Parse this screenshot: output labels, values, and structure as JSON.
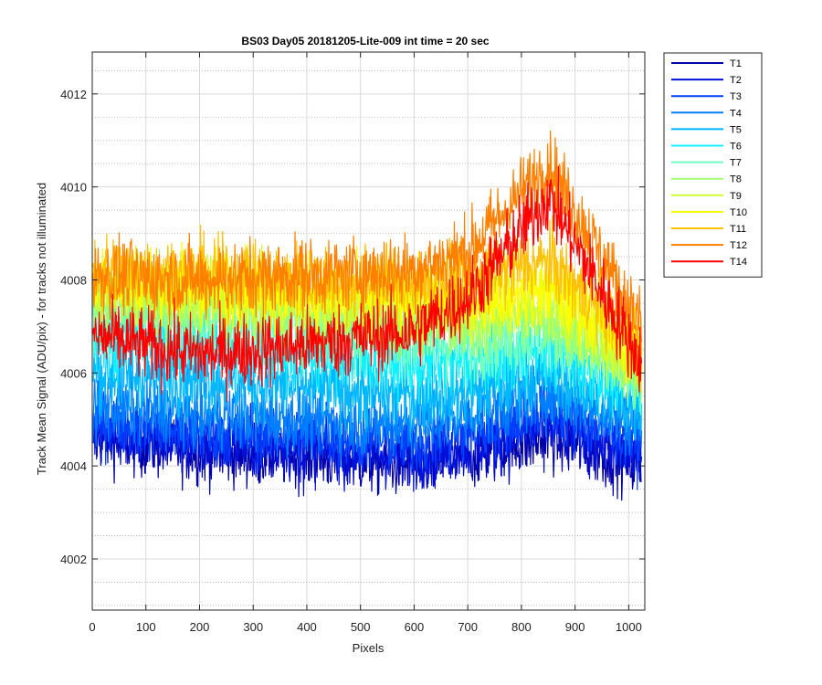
{
  "chart_data": {
    "type": "line",
    "title": "BS03 Day05 20181205-Lite-009 int time = 20 sec",
    "xlabel": "Pixels",
    "ylabel": "Track Mean Signal (ADU/pix) - for tracks not illuminated",
    "xlim": [
      0,
      1030
    ],
    "ylim": [
      4000.9,
      4012.9
    ],
    "xticks": [
      0,
      100,
      200,
      300,
      400,
      500,
      600,
      700,
      800,
      900,
      1000
    ],
    "yticks": [
      4002,
      4004,
      4006,
      4008,
      4010,
      4012
    ],
    "grid": true,
    "legend_position": "outside-right",
    "series": [
      {
        "name": "T1",
        "color": "#0000aa",
        "trend": [
          [
            0,
            4004.6
          ],
          [
            200,
            4004.3
          ],
          [
            400,
            4004.2
          ],
          [
            600,
            4004.0
          ],
          [
            700,
            4004.2
          ],
          [
            850,
            4004.6
          ],
          [
            1024,
            4004.0
          ]
        ],
        "noise": 0.7
      },
      {
        "name": "T2",
        "color": "#0010dd",
        "trend": [
          [
            0,
            4004.8
          ],
          [
            200,
            4004.5
          ],
          [
            400,
            4004.4
          ],
          [
            600,
            4004.2
          ],
          [
            700,
            4004.4
          ],
          [
            850,
            4004.9
          ],
          [
            1024,
            4004.2
          ]
        ],
        "noise": 0.7
      },
      {
        "name": "T3",
        "color": "#0040ff",
        "trend": [
          [
            0,
            4005.0
          ],
          [
            200,
            4004.7
          ],
          [
            400,
            4004.7
          ],
          [
            600,
            4004.5
          ],
          [
            700,
            4004.7
          ],
          [
            850,
            4005.2
          ],
          [
            1024,
            4004.5
          ]
        ],
        "noise": 0.7
      },
      {
        "name": "T4",
        "color": "#0080ff",
        "trend": [
          [
            0,
            4005.3
          ],
          [
            200,
            4005.1
          ],
          [
            400,
            4005.0
          ],
          [
            600,
            4004.9
          ],
          [
            700,
            4005.1
          ],
          [
            850,
            4005.6
          ],
          [
            1024,
            4004.9
          ]
        ],
        "noise": 0.75
      },
      {
        "name": "T5",
        "color": "#00b8ff",
        "trend": [
          [
            0,
            4006.0
          ],
          [
            200,
            4005.9
          ],
          [
            400,
            4005.7
          ],
          [
            600,
            4005.5
          ],
          [
            700,
            4005.6
          ],
          [
            850,
            4006.0
          ],
          [
            1024,
            4005.2
          ]
        ],
        "noise": 0.8
      },
      {
        "name": "T6",
        "color": "#10f0ff",
        "trend": [
          [
            0,
            4006.8
          ],
          [
            200,
            4006.7
          ],
          [
            400,
            4006.4
          ],
          [
            600,
            4006.2
          ],
          [
            700,
            4006.2
          ],
          [
            850,
            4006.5
          ],
          [
            1024,
            4005.6
          ]
        ],
        "noise": 0.8
      },
      {
        "name": "T7",
        "color": "#70ffc0",
        "trend": [
          [
            0,
            4007.3
          ],
          [
            200,
            4007.2
          ],
          [
            400,
            4006.9
          ],
          [
            600,
            4006.7
          ],
          [
            700,
            4006.6
          ],
          [
            850,
            4006.9
          ],
          [
            1024,
            4005.8
          ]
        ],
        "noise": 0.8
      },
      {
        "name": "T8",
        "color": "#a0ff70",
        "trend": [
          [
            0,
            4007.6
          ],
          [
            200,
            4007.5
          ],
          [
            400,
            4007.3
          ],
          [
            600,
            4007.1
          ],
          [
            700,
            4007.0
          ],
          [
            850,
            4007.2
          ],
          [
            1024,
            4006.0
          ]
        ],
        "noise": 0.8
      },
      {
        "name": "T9",
        "color": "#d0ff30",
        "trend": [
          [
            0,
            4007.8
          ],
          [
            200,
            4007.7
          ],
          [
            400,
            4007.5
          ],
          [
            600,
            4007.4
          ],
          [
            700,
            4007.3
          ],
          [
            850,
            4007.5
          ],
          [
            1024,
            4006.2
          ]
        ],
        "noise": 0.8
      },
      {
        "name": "T10",
        "color": "#ffff00",
        "trend": [
          [
            0,
            4008.0
          ],
          [
            200,
            4007.9
          ],
          [
            400,
            4007.7
          ],
          [
            600,
            4007.6
          ],
          [
            700,
            4007.6
          ],
          [
            850,
            4007.8
          ],
          [
            1024,
            4006.4
          ]
        ],
        "noise": 0.8
      },
      {
        "name": "T11",
        "color": "#ffc000",
        "trend": [
          [
            0,
            4008.2
          ],
          [
            200,
            4008.1
          ],
          [
            400,
            4008.0
          ],
          [
            600,
            4007.9
          ],
          [
            700,
            4008.0
          ],
          [
            850,
            4008.4
          ],
          [
            1024,
            4006.6
          ]
        ],
        "noise": 0.8
      },
      {
        "name": "T12",
        "color": "#ff8000",
        "trend": [
          [
            0,
            4008.1
          ],
          [
            200,
            4008.0
          ],
          [
            400,
            4008.1
          ],
          [
            600,
            4008.2
          ],
          [
            700,
            4008.6
          ],
          [
            850,
            4010.5
          ],
          [
            1024,
            4007.0
          ]
        ],
        "noise": 0.8
      },
      {
        "name": "T14",
        "color": "#ff0000",
        "trend": [
          [
            0,
            4006.8
          ],
          [
            200,
            4006.4
          ],
          [
            400,
            4006.6
          ],
          [
            600,
            4006.9
          ],
          [
            700,
            4007.6
          ],
          [
            850,
            4009.8
          ],
          [
            1024,
            4006.2
          ]
        ],
        "noise": 0.8
      }
    ]
  }
}
